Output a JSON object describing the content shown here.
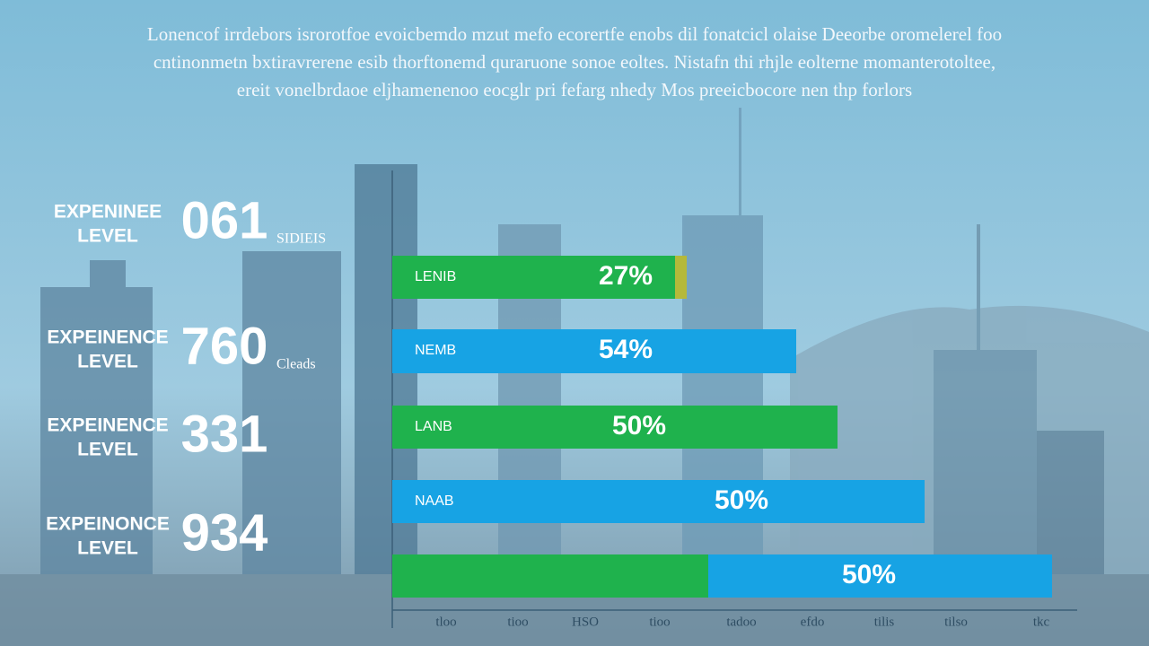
{
  "header": {
    "lines": [
      "Lonencof irrdebors isrorotfoe evoicbemdo mzut mefo ecorertfe enobs dil fonatcicl olaise Deeorbe oromelerel foo",
      "cntinonmetn bxtiravrerene esib thorftonemd quraruone sonoe eoltes. Nistafn thi rhjle eolterne momanterotoltee,",
      "ereit vonelbrdaoe eljhamenenoo eocglr pri fefarg nhedy Mos preeicbocore nen thp forlors"
    ]
  },
  "rows": [
    {
      "label": [
        "EXPENINEE",
        "LEVEL"
      ],
      "number": "061",
      "note": "SIDIEIS"
    },
    {
      "label": [
        "EXPEINENCE",
        "LEVEL"
      ],
      "number": "760",
      "note": "Cleads"
    },
    {
      "label": [
        "EXPEINENCE",
        "LEVEL"
      ],
      "number": "331"
    },
    {
      "label": [
        "EXPEINONCE",
        "LEVEL"
      ],
      "number": "934"
    }
  ],
  "bars": [
    {
      "label": "LENIB",
      "value_text": "27%"
    },
    {
      "label": "NEMB",
      "value_text": "54%"
    },
    {
      "label": "LANB",
      "value_text": "50%"
    },
    {
      "label": "NAAB",
      "value_text": "50%"
    },
    {
      "value_text": "50%"
    }
  ],
  "axis_ticks": [
    "tloo",
    "tioo",
    "HSO",
    "tioo",
    "tadoo",
    "efdo",
    "tilis",
    "tilso",
    "tkc"
  ]
}
